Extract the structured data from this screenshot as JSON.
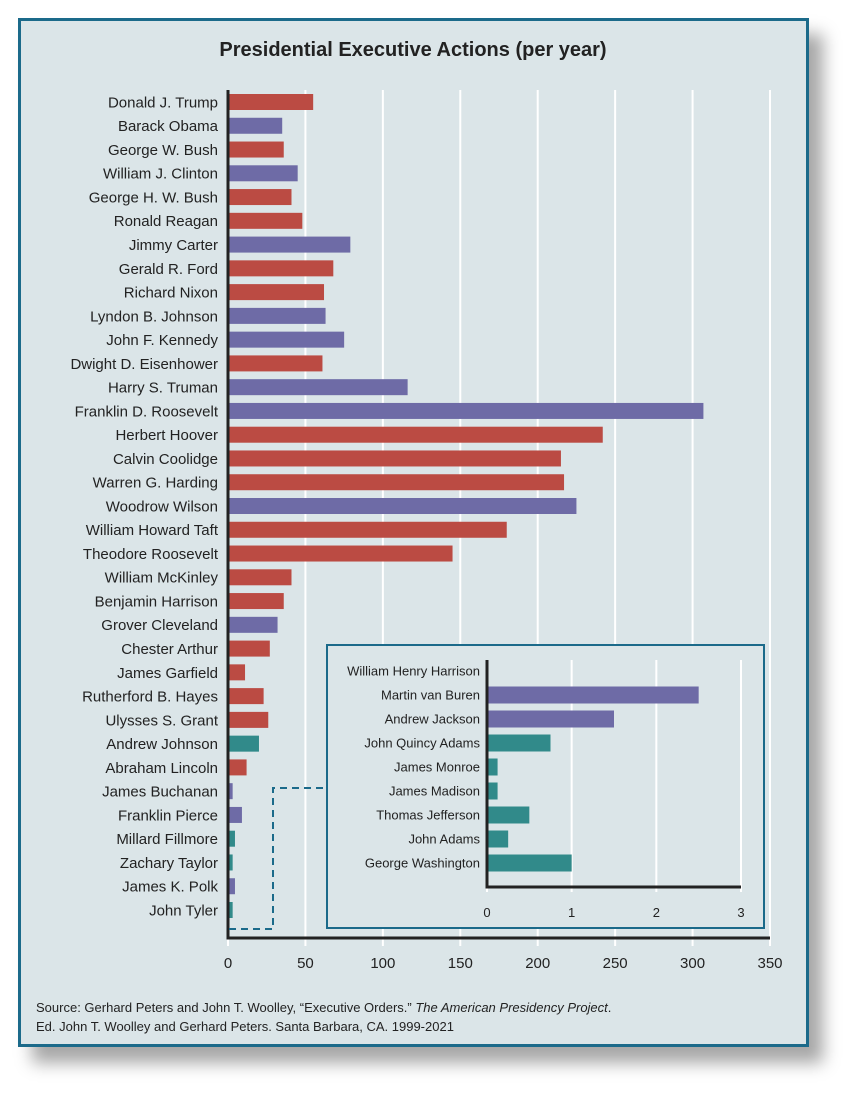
{
  "chart_data": [
    {
      "type": "bar",
      "orientation": "horizontal",
      "title": "Presidential Executive Actions (per year)",
      "xlim": [
        0,
        350
      ],
      "xticks": [
        0,
        50,
        100,
        150,
        200,
        250,
        300,
        350
      ],
      "grid": true,
      "categories": [
        "Donald J. Trump",
        "Barack Obama",
        "George W. Bush",
        "William J. Clinton",
        "George H. W. Bush",
        "Ronald Reagan",
        "Jimmy Carter",
        "Gerald R. Ford",
        "Richard Nixon",
        "Lyndon B. Johnson",
        "John F. Kennedy",
        "Dwight D. Eisenhower",
        "Harry S. Truman",
        "Franklin D. Roosevelt",
        "Herbert Hoover",
        "Calvin Coolidge",
        "Warren G. Harding",
        "Woodrow Wilson",
        "William Howard Taft",
        "Theodore Roosevelt",
        "William McKinley",
        "Benjamin Harrison",
        "Grover Cleveland",
        "Chester Arthur",
        "James Garfield",
        "Rutherford B. Hayes",
        "Ulysses S. Grant",
        "Andrew Johnson",
        "Abraham Lincoln",
        "James Buchanan",
        "Franklin Pierce",
        "Millard Fillmore",
        "Zachary Taylor",
        "James K. Polk",
        "John Tyler"
      ],
      "values": [
        55,
        35,
        36,
        45,
        41,
        48,
        79,
        68,
        62,
        63,
        75,
        61,
        116,
        307,
        242,
        215,
        217,
        225,
        180,
        145,
        41,
        36,
        32,
        27,
        11,
        23,
        26,
        20,
        12,
        3,
        9,
        4.5,
        3,
        4.5,
        3
      ],
      "bar_colors": [
        "red",
        "purple",
        "red",
        "purple",
        "red",
        "red",
        "purple",
        "red",
        "red",
        "purple",
        "purple",
        "red",
        "purple",
        "purple",
        "red",
        "red",
        "red",
        "purple",
        "red",
        "red",
        "red",
        "red",
        "purple",
        "red",
        "red",
        "red",
        "red",
        "teal",
        "red",
        "purple",
        "purple",
        "teal",
        "teal",
        "purple",
        "teal"
      ]
    },
    {
      "type": "bar",
      "orientation": "horizontal",
      "role": "inset",
      "xlim": [
        0,
        3
      ],
      "xticks": [
        0,
        1,
        2,
        3
      ],
      "grid": true,
      "categories": [
        "William Henry Harrison",
        "Martin van Buren",
        "Andrew Jackson",
        "John Quincy Adams",
        "James Monroe",
        "James Madison",
        "Thomas Jefferson",
        "John Adams",
        "George Washington"
      ],
      "values": [
        0,
        2.5,
        1.5,
        0.75,
        0.125,
        0.125,
        0.5,
        0.25,
        1.0
      ],
      "bar_colors": [
        "purple",
        "purple",
        "purple",
        "teal",
        "teal",
        "teal",
        "teal",
        "teal",
        "teal"
      ]
    }
  ],
  "colors": {
    "red": "#bb4b43",
    "purple": "#6e6ba6",
    "teal": "#318a8a",
    "frame": "#1b6a8a",
    "background": "#dbe5e8"
  },
  "source": {
    "part1": "Source: Gerhard Peters and John T. Woolley, “Executive Orders.” ",
    "italic": "The American Presidency Project",
    "part2": ".",
    "line2": "Ed. John T. Woolley and Gerhard Peters. Santa Barbara, CA. 1999-2021"
  }
}
